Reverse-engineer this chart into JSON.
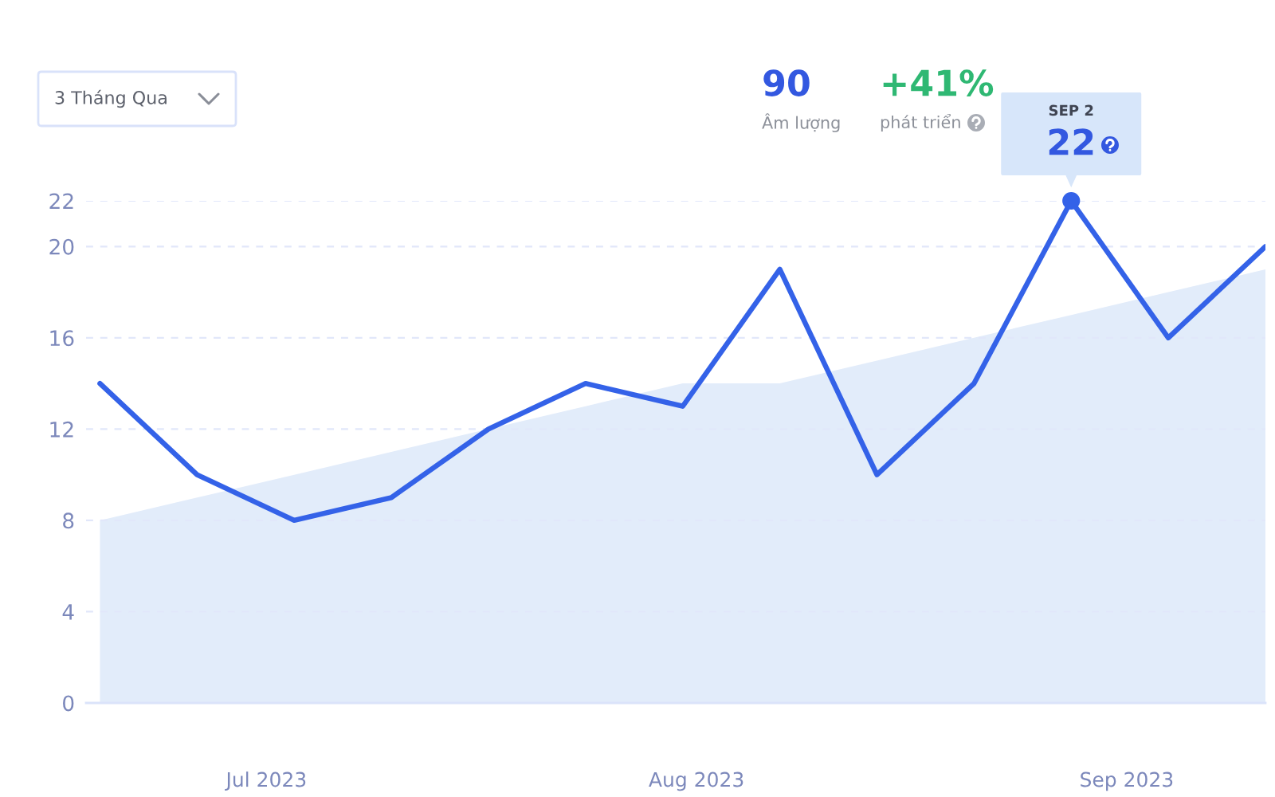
{
  "chart_data": {
    "type": "line",
    "x": [
      "2023-06-24",
      "2023-07-01",
      "2023-07-08",
      "2023-07-15",
      "2023-07-22",
      "2023-07-29",
      "2023-08-05",
      "2023-08-12",
      "2023-08-19",
      "2023-08-26",
      "2023-09-02",
      "2023-09-09",
      "2023-09-16"
    ],
    "series": [
      {
        "type": "area",
        "color": "#e2ecfa",
        "values": [
          8,
          9,
          10,
          11,
          12,
          13,
          14,
          14,
          15,
          16,
          17,
          18,
          19
        ]
      },
      {
        "color": "#3462e8",
        "values": [
          14,
          10,
          8,
          9,
          12,
          14,
          13,
          19,
          10,
          14,
          22,
          16,
          20
        ]
      }
    ],
    "xlim": [
      "2023-06-23",
      "2023-09-16"
    ],
    "xticks": [
      {
        "value": "2023-07-06",
        "label": "Jul 2023"
      },
      {
        "value": "2023-08-06",
        "label": "Aug 2023"
      },
      {
        "value": "2023-09-06",
        "label": "Sep 2023"
      }
    ],
    "ylim": [
      0,
      22
    ],
    "yticks": [
      0,
      4,
      8,
      12,
      16,
      20,
      22
    ],
    "grid": "y",
    "annotations": [
      "3 Tháng Qua",
      "90",
      "Âm lượng",
      "+41%",
      "phát triển",
      "SEP 2",
      {
        "text": "22",
        "x": "2023-09-02",
        "y": 22
      }
    ]
  }
}
